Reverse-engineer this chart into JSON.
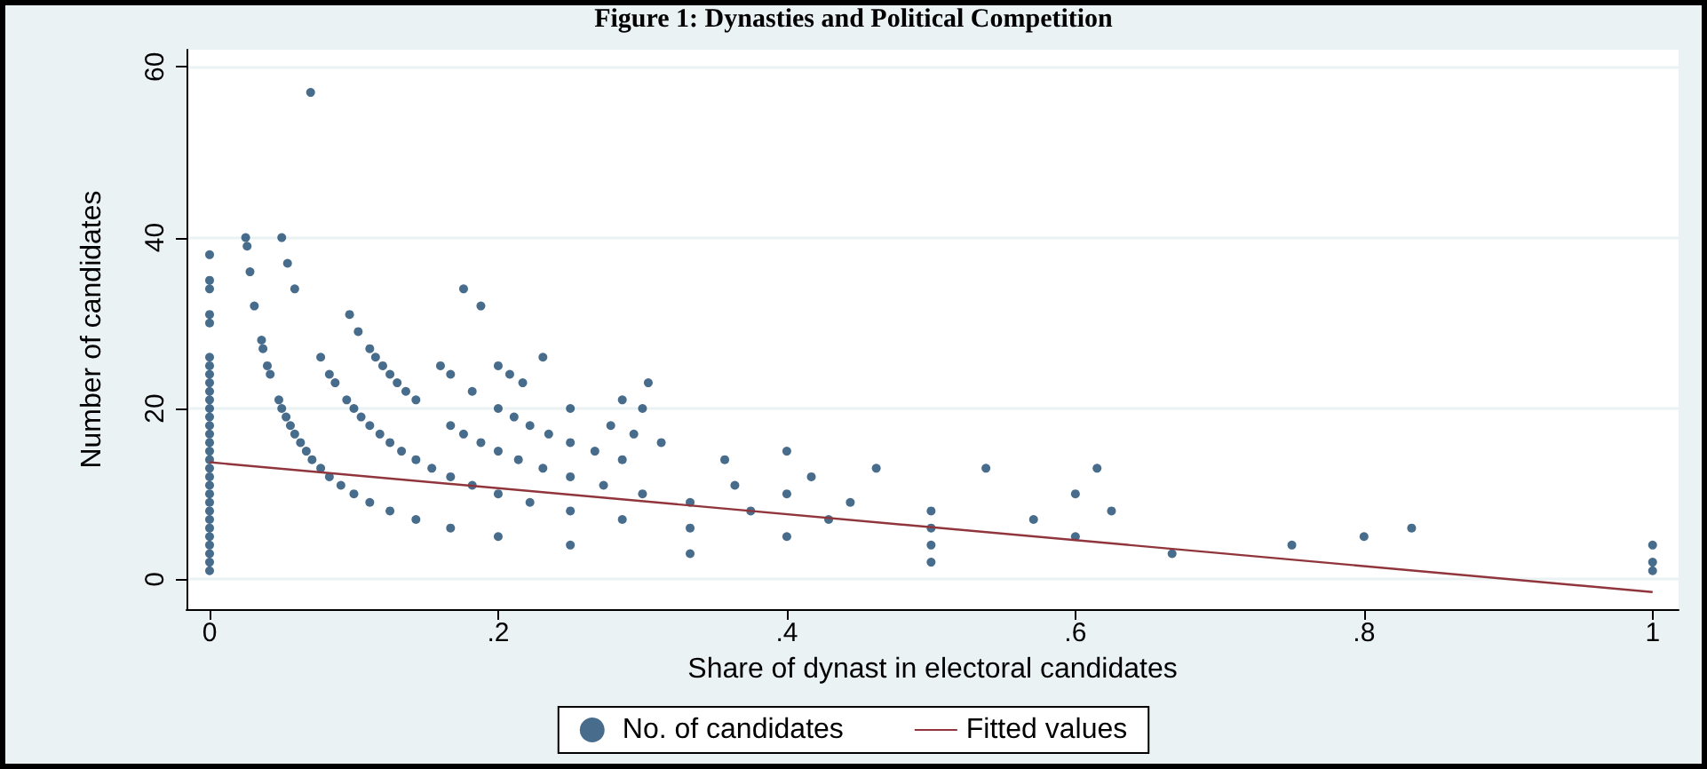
{
  "chart_data": {
    "type": "scatter",
    "title": "Figure 1: Dynasties and Political Competition",
    "xlabel": "Share of dynast in electoral candidates",
    "ylabel": "Number of candidates",
    "xlim": [
      -0.016,
      1.018
    ],
    "ylim": [
      -3.5,
      62
    ],
    "xticks": [
      0,
      {
        "value": 0.2,
        "label": ".2"
      },
      {
        "value": 0.4,
        "label": ".4"
      },
      {
        "value": 0.6,
        "label": ".6"
      },
      {
        "value": 0.8,
        "label": ".8"
      },
      1
    ],
    "yticks": [
      0,
      20,
      40,
      60
    ],
    "grid": "y",
    "legend": "bottom",
    "series": [
      {
        "name": "No. of candidates",
        "marker": "circle",
        "color": "#1a476f",
        "x": [
          0,
          0,
          0,
          0,
          0,
          0,
          0,
          0,
          0,
          0,
          0,
          0,
          0,
          0,
          0,
          0,
          0,
          0,
          0,
          0,
          0,
          0,
          0,
          0,
          0,
          0,
          0,
          0,
          0,
          0,
          0,
          0.025,
          0.026,
          0.028,
          0.031,
          0.036,
          0.037,
          0.04,
          0.042,
          0.048,
          0.05,
          0.053,
          0.056,
          0.059,
          0.063,
          0.067,
          0.071,
          0.077,
          0.083,
          0.091,
          0.1,
          0.111,
          0.125,
          0.143,
          0.167,
          0.2,
          0.25,
          0.333,
          0.5,
          1,
          0.05,
          0.054,
          0.059,
          0.077,
          0.083,
          0.087,
          0.095,
          0.1,
          0.105,
          0.111,
          0.118,
          0.125,
          0.133,
          0.143,
          0.154,
          0.167,
          0.182,
          0.2,
          0.222,
          0.25,
          0.286,
          0.333,
          0.4,
          0.5,
          0.667,
          0.097,
          0.103,
          0.111,
          0.115,
          0.12,
          0.125,
          0.13,
          0.136,
          0.143,
          0.167,
          0.176,
          0.188,
          0.2,
          0.214,
          0.231,
          0.25,
          0.273,
          0.3,
          0.333,
          0.375,
          0.429,
          0.5,
          0.6,
          0.75,
          0.07,
          0.16,
          0.167,
          0.182,
          0.2,
          0.211,
          0.222,
          0.235,
          0.25,
          0.267,
          0.286,
          0.364,
          0.4,
          0.444,
          0.5,
          0.571,
          0.8,
          0.2,
          0.208,
          0.217,
          0.25,
          0.278,
          0.294,
          0.313,
          0.357,
          0.417,
          0.625,
          0.833,
          0.176,
          0.188,
          0.231,
          0.286,
          0.3,
          0.4,
          0.462,
          0.6,
          0.304,
          0.538,
          0.615,
          1,
          1
        ],
        "values": [
          1,
          2,
          3,
          4,
          5,
          6,
          7,
          8,
          9,
          10,
          11,
          12,
          13,
          14,
          15,
          16,
          17,
          18,
          19,
          20,
          21,
          22,
          23,
          24,
          25,
          26,
          30,
          31,
          34,
          35,
          38,
          40,
          39,
          36,
          32,
          28,
          27,
          25,
          24,
          21,
          20,
          19,
          18,
          17,
          16,
          15,
          14,
          13,
          12,
          11,
          10,
          9,
          8,
          7,
          6,
          5,
          4,
          3,
          2,
          1,
          40,
          37,
          34,
          26,
          24,
          23,
          21,
          20,
          19,
          18,
          17,
          16,
          15,
          14,
          13,
          12,
          11,
          10,
          9,
          8,
          7,
          6,
          5,
          4,
          3,
          31,
          29,
          27,
          26,
          25,
          24,
          23,
          22,
          21,
          18,
          17,
          16,
          15,
          14,
          13,
          12,
          11,
          10,
          9,
          8,
          7,
          6,
          5,
          4,
          57,
          25,
          24,
          22,
          20,
          19,
          18,
          17,
          16,
          15,
          14,
          11,
          10,
          9,
          8,
          7,
          5,
          25,
          24,
          23,
          20,
          18,
          17,
          16,
          14,
          12,
          8,
          6,
          34,
          32,
          26,
          21,
          20,
          15,
          13,
          10,
          23,
          13,
          13,
          4,
          2
        ]
      },
      {
        "name": "Fitted values",
        "type": "line",
        "line_style": "solid",
        "color": "#90353b",
        "x": [
          0,
          1
        ],
        "values": [
          13.7,
          -1.5
        ]
      }
    ]
  }
}
